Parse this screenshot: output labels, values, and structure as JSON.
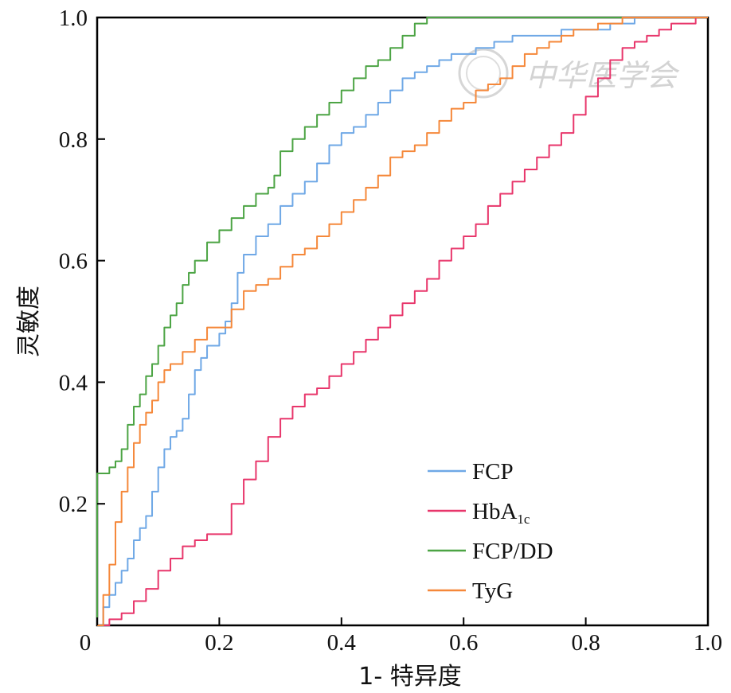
{
  "chart_data": {
    "type": "line",
    "title": "",
    "xlabel": "1- 特异度",
    "ylabel": "灵敏度",
    "xlim": [
      0,
      1
    ],
    "ylim": [
      0,
      1
    ],
    "xticks": [
      "0",
      "0.2",
      "0.4",
      "0.6",
      "0.8",
      "1.0"
    ],
    "yticks": [
      "0.2",
      "0.4",
      "0.6",
      "0.8",
      "1.0"
    ],
    "grid": false,
    "legend": "bottom-right",
    "watermark": "中华医学会",
    "series": [
      {
        "name": "FCP",
        "name_sub": "",
        "color": "#6fa8e6",
        "points": [
          [
            0,
            0
          ],
          [
            0.01,
            0.03
          ],
          [
            0.02,
            0.05
          ],
          [
            0.03,
            0.07
          ],
          [
            0.04,
            0.09
          ],
          [
            0.05,
            0.11
          ],
          [
            0.06,
            0.14
          ],
          [
            0.07,
            0.16
          ],
          [
            0.08,
            0.18
          ],
          [
            0.09,
            0.22
          ],
          [
            0.1,
            0.26
          ],
          [
            0.11,
            0.29
          ],
          [
            0.12,
            0.31
          ],
          [
            0.13,
            0.32
          ],
          [
            0.14,
            0.34
          ],
          [
            0.15,
            0.38
          ],
          [
            0.16,
            0.42
          ],
          [
            0.17,
            0.44
          ],
          [
            0.18,
            0.46
          ],
          [
            0.2,
            0.48
          ],
          [
            0.21,
            0.5
          ],
          [
            0.22,
            0.53
          ],
          [
            0.23,
            0.58
          ],
          [
            0.24,
            0.61
          ],
          [
            0.26,
            0.64
          ],
          [
            0.28,
            0.66
          ],
          [
            0.3,
            0.69
          ],
          [
            0.32,
            0.71
          ],
          [
            0.34,
            0.73
          ],
          [
            0.36,
            0.76
          ],
          [
            0.38,
            0.79
          ],
          [
            0.4,
            0.81
          ],
          [
            0.42,
            0.82
          ],
          [
            0.44,
            0.84
          ],
          [
            0.46,
            0.86
          ],
          [
            0.48,
            0.88
          ],
          [
            0.5,
            0.9
          ],
          [
            0.52,
            0.91
          ],
          [
            0.54,
            0.92
          ],
          [
            0.56,
            0.93
          ],
          [
            0.58,
            0.94
          ],
          [
            0.6,
            0.94
          ],
          [
            0.62,
            0.95
          ],
          [
            0.65,
            0.96
          ],
          [
            0.68,
            0.97
          ],
          [
            0.72,
            0.97
          ],
          [
            0.76,
            0.98
          ],
          [
            0.8,
            0.98
          ],
          [
            0.84,
            0.99
          ],
          [
            0.88,
            1.0
          ],
          [
            0.92,
            1.0
          ],
          [
            1,
            1
          ]
        ]
      },
      {
        "name": "HbA",
        "name_sub": "1c",
        "color": "#e8366b",
        "points": [
          [
            0,
            0
          ],
          [
            0.02,
            0.01
          ],
          [
            0.04,
            0.02
          ],
          [
            0.06,
            0.04
          ],
          [
            0.08,
            0.06
          ],
          [
            0.1,
            0.09
          ],
          [
            0.12,
            0.11
          ],
          [
            0.14,
            0.13
          ],
          [
            0.16,
            0.14
          ],
          [
            0.18,
            0.15
          ],
          [
            0.2,
            0.15
          ],
          [
            0.22,
            0.2
          ],
          [
            0.24,
            0.24
          ],
          [
            0.26,
            0.27
          ],
          [
            0.28,
            0.31
          ],
          [
            0.3,
            0.34
          ],
          [
            0.32,
            0.36
          ],
          [
            0.34,
            0.38
          ],
          [
            0.36,
            0.39
          ],
          [
            0.38,
            0.41
          ],
          [
            0.4,
            0.43
          ],
          [
            0.42,
            0.45
          ],
          [
            0.44,
            0.47
          ],
          [
            0.46,
            0.49
          ],
          [
            0.48,
            0.51
          ],
          [
            0.5,
            0.53
          ],
          [
            0.52,
            0.55
          ],
          [
            0.54,
            0.57
          ],
          [
            0.56,
            0.6
          ],
          [
            0.58,
            0.62
          ],
          [
            0.6,
            0.64
          ],
          [
            0.62,
            0.66
          ],
          [
            0.64,
            0.69
          ],
          [
            0.66,
            0.71
          ],
          [
            0.68,
            0.73
          ],
          [
            0.7,
            0.75
          ],
          [
            0.72,
            0.77
          ],
          [
            0.74,
            0.79
          ],
          [
            0.76,
            0.81
          ],
          [
            0.78,
            0.84
          ],
          [
            0.8,
            0.87
          ],
          [
            0.82,
            0.9
          ],
          [
            0.84,
            0.93
          ],
          [
            0.86,
            0.95
          ],
          [
            0.88,
            0.96
          ],
          [
            0.9,
            0.97
          ],
          [
            0.92,
            0.98
          ],
          [
            0.94,
            0.99
          ],
          [
            0.96,
            0.99
          ],
          [
            0.98,
            1.0
          ],
          [
            1,
            1
          ]
        ]
      },
      {
        "name": "FCP/DD",
        "name_sub": "",
        "color": "#4ca444",
        "points": [
          [
            0,
            0
          ],
          [
            0,
            0.25
          ],
          [
            0.02,
            0.26
          ],
          [
            0.03,
            0.27
          ],
          [
            0.04,
            0.29
          ],
          [
            0.05,
            0.33
          ],
          [
            0.06,
            0.36
          ],
          [
            0.07,
            0.38
          ],
          [
            0.08,
            0.41
          ],
          [
            0.09,
            0.43
          ],
          [
            0.1,
            0.46
          ],
          [
            0.11,
            0.49
          ],
          [
            0.12,
            0.51
          ],
          [
            0.13,
            0.53
          ],
          [
            0.14,
            0.56
          ],
          [
            0.15,
            0.58
          ],
          [
            0.16,
            0.6
          ],
          [
            0.18,
            0.63
          ],
          [
            0.2,
            0.65
          ],
          [
            0.22,
            0.67
          ],
          [
            0.24,
            0.69
          ],
          [
            0.26,
            0.71
          ],
          [
            0.28,
            0.72
          ],
          [
            0.29,
            0.74
          ],
          [
            0.3,
            0.78
          ],
          [
            0.32,
            0.8
          ],
          [
            0.34,
            0.82
          ],
          [
            0.36,
            0.84
          ],
          [
            0.38,
            0.86
          ],
          [
            0.4,
            0.88
          ],
          [
            0.42,
            0.9
          ],
          [
            0.44,
            0.92
          ],
          [
            0.46,
            0.93
          ],
          [
            0.48,
            0.95
          ],
          [
            0.5,
            0.97
          ],
          [
            0.52,
            0.99
          ],
          [
            0.54,
            1.0
          ],
          [
            0.6,
            1.0
          ],
          [
            0.7,
            1.0
          ],
          [
            0.8,
            1.0
          ],
          [
            0.9,
            1.0
          ],
          [
            1,
            1
          ]
        ]
      },
      {
        "name": "TyG",
        "name_sub": "",
        "color": "#f5883a",
        "points": [
          [
            0,
            0
          ],
          [
            0.01,
            0.05
          ],
          [
            0.02,
            0.1
          ],
          [
            0.03,
            0.17
          ],
          [
            0.04,
            0.22
          ],
          [
            0.05,
            0.26
          ],
          [
            0.06,
            0.3
          ],
          [
            0.07,
            0.33
          ],
          [
            0.08,
            0.35
          ],
          [
            0.09,
            0.37
          ],
          [
            0.1,
            0.4
          ],
          [
            0.11,
            0.42
          ],
          [
            0.12,
            0.43
          ],
          [
            0.14,
            0.45
          ],
          [
            0.16,
            0.47
          ],
          [
            0.18,
            0.49
          ],
          [
            0.2,
            0.49
          ],
          [
            0.22,
            0.52
          ],
          [
            0.24,
            0.55
          ],
          [
            0.26,
            0.56
          ],
          [
            0.28,
            0.57
          ],
          [
            0.3,
            0.59
          ],
          [
            0.32,
            0.61
          ],
          [
            0.34,
            0.62
          ],
          [
            0.36,
            0.64
          ],
          [
            0.38,
            0.66
          ],
          [
            0.4,
            0.68
          ],
          [
            0.42,
            0.7
          ],
          [
            0.44,
            0.72
          ],
          [
            0.46,
            0.74
          ],
          [
            0.48,
            0.77
          ],
          [
            0.5,
            0.78
          ],
          [
            0.52,
            0.79
          ],
          [
            0.54,
            0.81
          ],
          [
            0.56,
            0.83
          ],
          [
            0.58,
            0.85
          ],
          [
            0.6,
            0.86
          ],
          [
            0.62,
            0.88
          ],
          [
            0.64,
            0.89
          ],
          [
            0.66,
            0.9
          ],
          [
            0.68,
            0.92
          ],
          [
            0.7,
            0.94
          ],
          [
            0.72,
            0.95
          ],
          [
            0.74,
            0.96
          ],
          [
            0.76,
            0.97
          ],
          [
            0.78,
            0.98
          ],
          [
            0.8,
            0.98
          ],
          [
            0.82,
            0.99
          ],
          [
            0.86,
            1.0
          ],
          [
            0.9,
            1.0
          ],
          [
            1,
            1
          ]
        ]
      }
    ]
  }
}
